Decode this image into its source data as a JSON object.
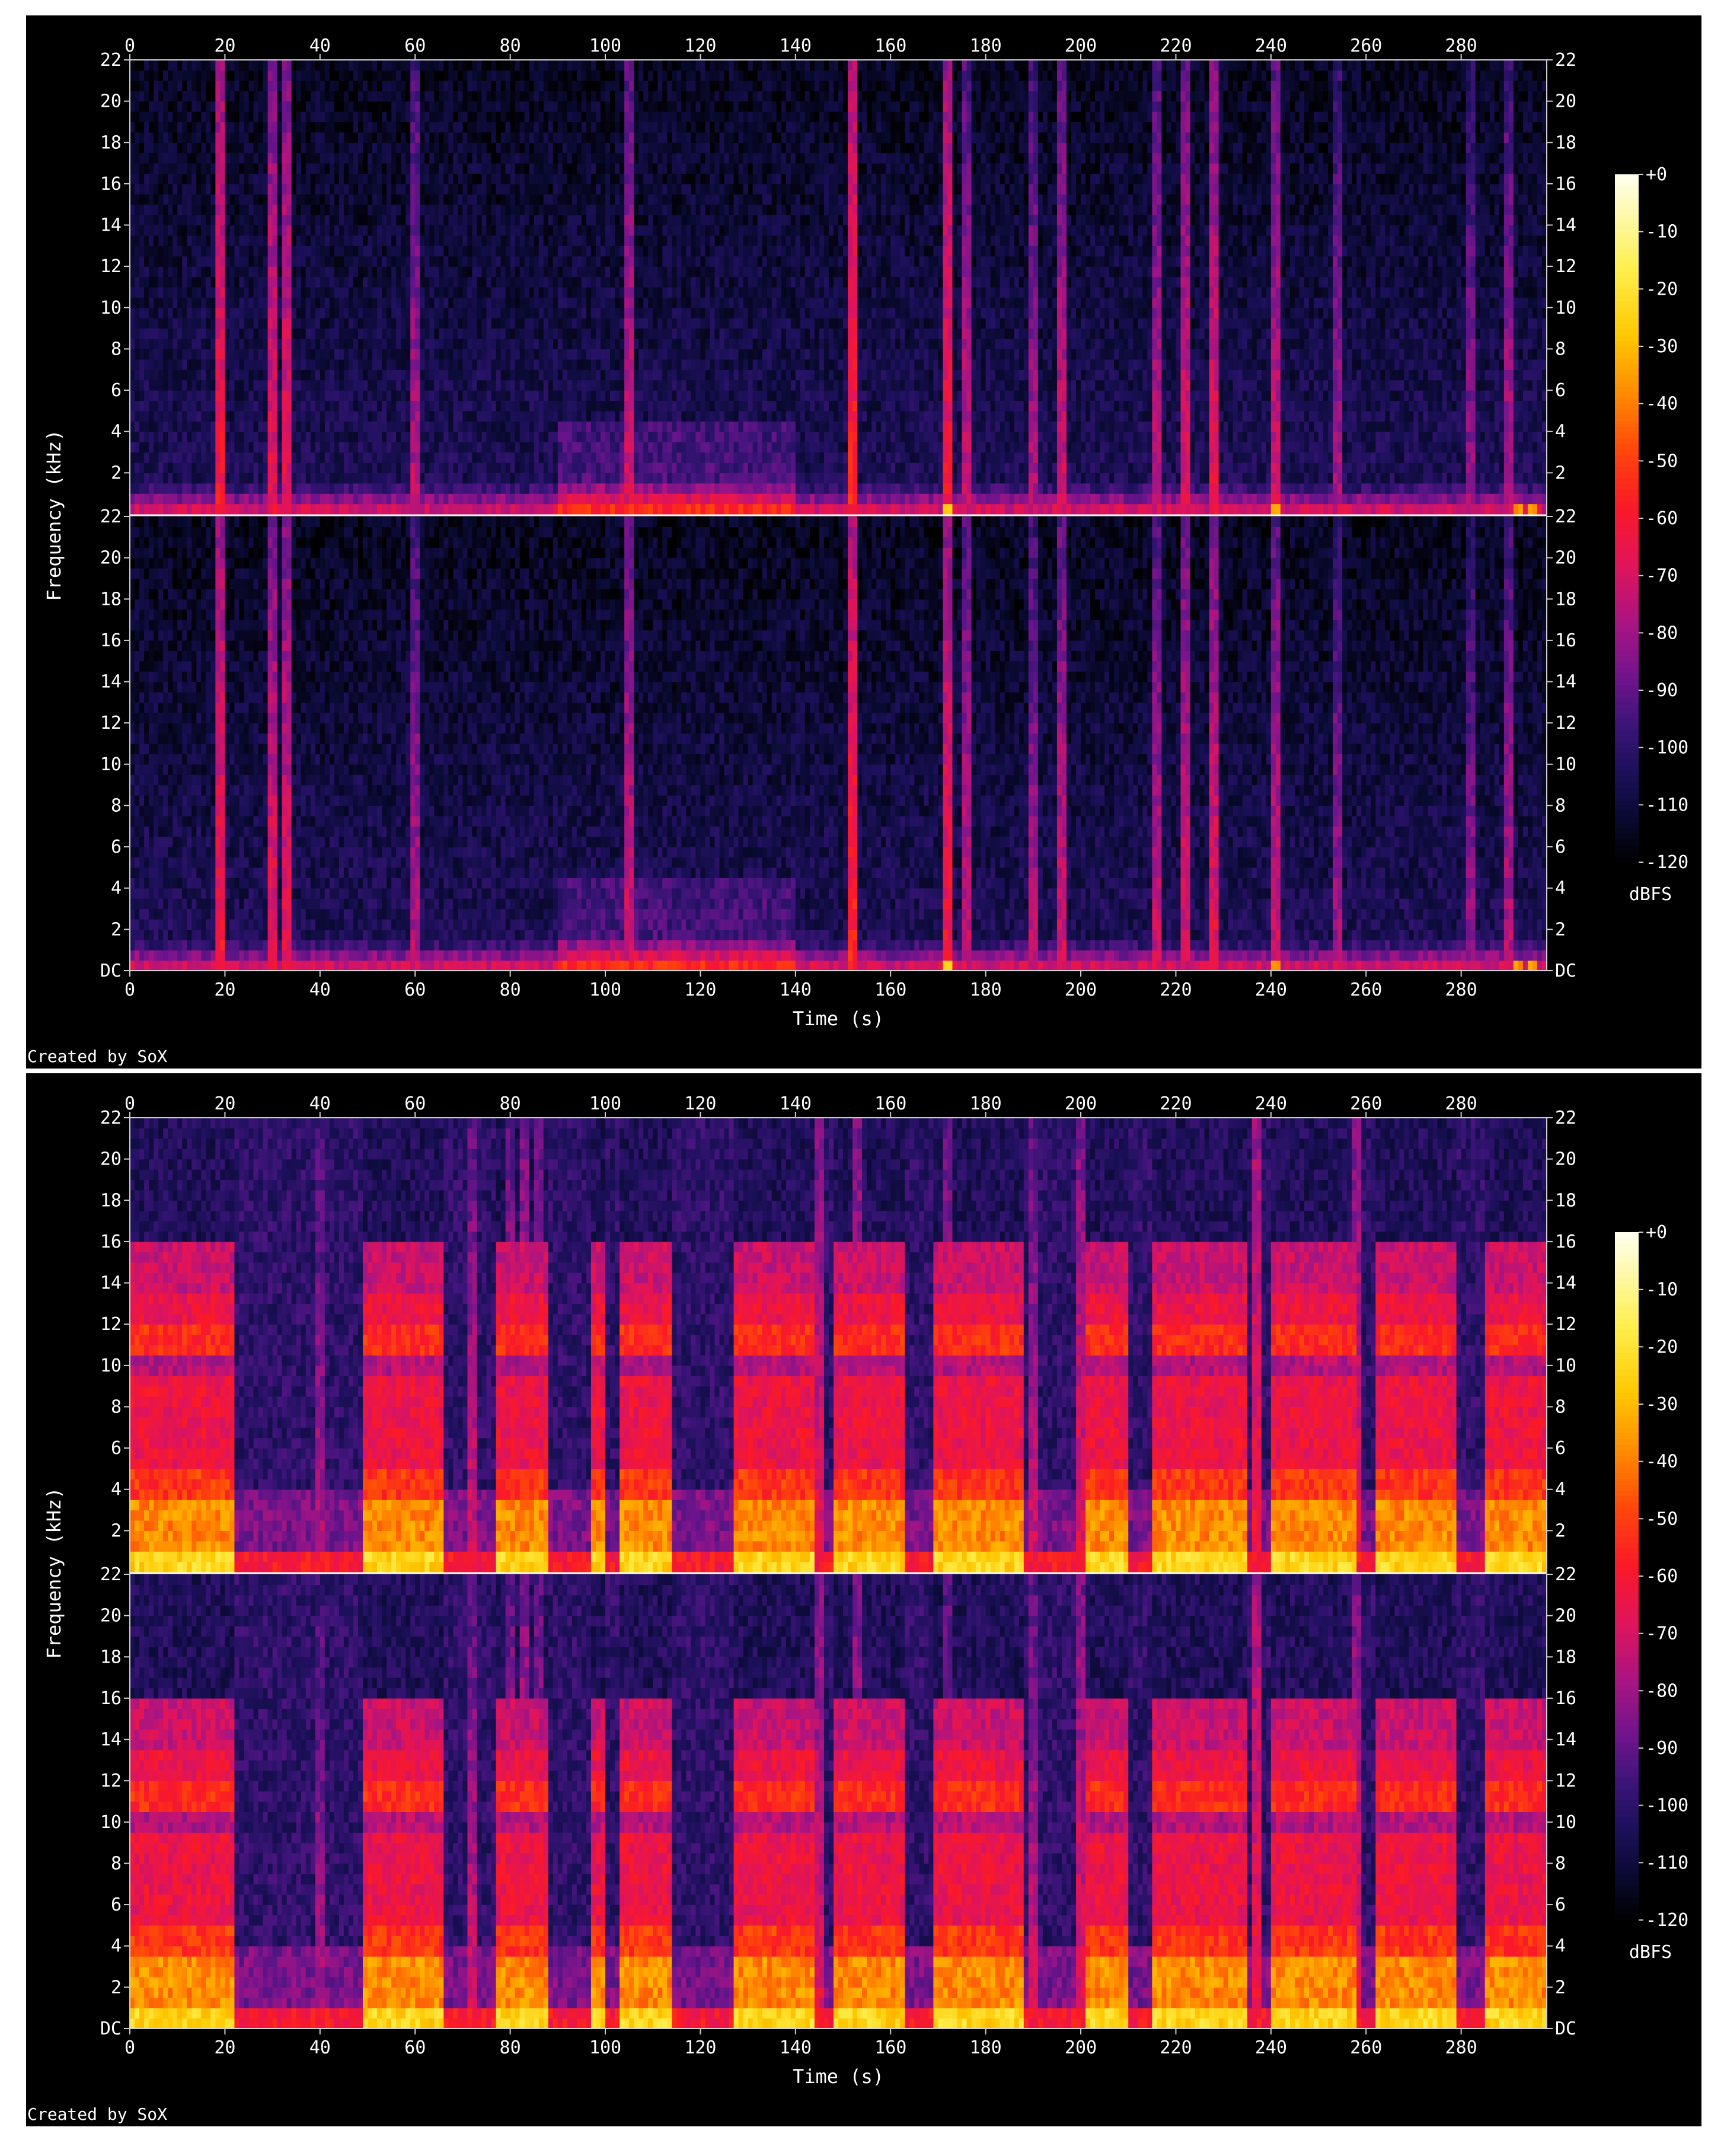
{
  "chart_data": [
    {
      "type": "heatmap",
      "xlabel": "Time (s)",
      "ylabel": "Frequency (kHz)",
      "x_ticks": [
        "0",
        "20",
        "40",
        "60",
        "80",
        "100",
        "120",
        "140",
        "160",
        "180",
        "200",
        "220",
        "240",
        "260",
        "280"
      ],
      "x_range": [
        0,
        298
      ],
      "y_ticks": [
        "DC",
        "2",
        "4",
        "6",
        "8",
        "10",
        "12",
        "14",
        "16",
        "18",
        "20",
        "22"
      ],
      "y_range_khz": [
        0,
        22
      ],
      "channels": 2,
      "colorbar": {
        "ticks": [
          "+0",
          "-10",
          "-20",
          "-30",
          "-40",
          "-50",
          "-60",
          "-70",
          "-80",
          "-90",
          "-100",
          "-110",
          "-120"
        ],
        "range": [
          -120,
          0
        ],
        "unit": "dBFS"
      },
      "footer": "Created by SoX",
      "profile": {
        "style": "quiet",
        "active_segments": [
          [
            0,
            298
          ]
        ],
        "bright_lines": [
          [
            19,
            -60
          ],
          [
            30,
            -65
          ],
          [
            33,
            -65
          ],
          [
            60,
            -75
          ],
          [
            105,
            -70
          ],
          [
            152,
            -55
          ],
          [
            172,
            -60
          ],
          [
            176,
            -72
          ],
          [
            190,
            -75
          ],
          [
            196,
            -70
          ],
          [
            216,
            -72
          ],
          [
            222,
            -68
          ],
          [
            228,
            -65
          ],
          [
            241,
            -70
          ],
          [
            254,
            -78
          ],
          [
            282,
            -80
          ],
          [
            290,
            -75
          ]
        ],
        "hotspots": [
          [
            172,
            -30
          ],
          [
            241,
            -35
          ],
          [
            292,
            -40
          ],
          [
            295,
            -35
          ]
        ]
      }
    },
    {
      "type": "heatmap",
      "xlabel": "Time (s)",
      "ylabel": "Frequency (kHz)",
      "x_ticks": [
        "0",
        "20",
        "40",
        "60",
        "80",
        "100",
        "120",
        "140",
        "160",
        "180",
        "200",
        "220",
        "240",
        "260",
        "280"
      ],
      "x_range": [
        0,
        298
      ],
      "y_ticks": [
        "DC",
        "2",
        "4",
        "6",
        "8",
        "10",
        "12",
        "14",
        "16",
        "18",
        "20",
        "22"
      ],
      "y_range_khz": [
        0,
        22
      ],
      "channels": 2,
      "colorbar": {
        "ticks": [
          "+0",
          "-10",
          "-20",
          "-30",
          "-40",
          "-50",
          "-60",
          "-70",
          "-80",
          "-90",
          "-100",
          "-110",
          "-120"
        ],
        "range": [
          -120,
          0
        ],
        "unit": "dBFS"
      },
      "footer": "Created by SoX",
      "profile": {
        "style": "loud",
        "active_segments": [
          [
            0,
            22
          ],
          [
            49,
            66
          ],
          [
            77,
            88
          ],
          [
            97,
            100
          ],
          [
            103,
            114
          ],
          [
            127,
            144
          ],
          [
            148,
            163
          ],
          [
            169,
            188
          ],
          [
            201,
            210
          ],
          [
            215,
            235
          ],
          [
            240,
            258
          ],
          [
            262,
            279
          ],
          [
            285,
            298
          ]
        ],
        "bright_lines": [
          [
            40,
            -75
          ],
          [
            72,
            -70
          ],
          [
            80,
            -70
          ],
          [
            83,
            -65
          ],
          [
            86,
            -70
          ],
          [
            145,
            -65
          ],
          [
            153,
            -65
          ],
          [
            172,
            -70
          ],
          [
            190,
            -70
          ],
          [
            200,
            -65
          ],
          [
            237,
            -60
          ],
          [
            258,
            -65
          ]
        ],
        "hotspots": []
      }
    }
  ]
}
